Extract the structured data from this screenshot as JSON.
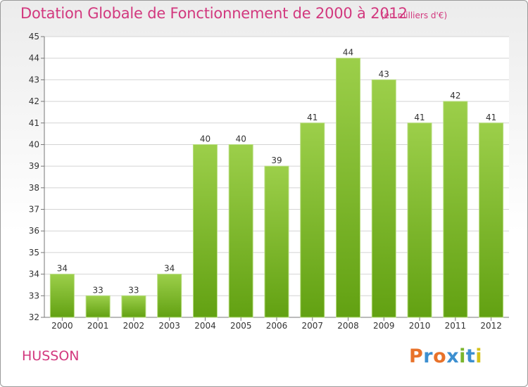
{
  "header": {
    "title": "Dotation Globale de Fonctionnement de 2000 à 2012",
    "subtitle": "(en milliers d'€)"
  },
  "footer": {
    "place": "HUSSON",
    "logo_text": "Proxiti",
    "logo_colors": [
      "#e8722a",
      "#3c8fd0",
      "#e8722a",
      "#3c8fd0",
      "#7ab52e",
      "#3c8fd0",
      "#d4c21a"
    ]
  },
  "colors": {
    "accent": "#d2387e",
    "bar_top": "#9ccf4a",
    "bar_bottom": "#62a112",
    "grid": "#d4d4d4",
    "axis": "#777777"
  },
  "chart_data": {
    "type": "bar",
    "title": "Dotation Globale de Fonctionnement de 2000 à 2012",
    "subtitle": "(en milliers d'€)",
    "xlabel": "",
    "ylabel": "",
    "categories": [
      "2000",
      "2001",
      "2002",
      "2003",
      "2004",
      "2005",
      "2006",
      "2007",
      "2008",
      "2009",
      "2010",
      "2011",
      "2012"
    ],
    "values": [
      34,
      33,
      33,
      34,
      40,
      40,
      39,
      41,
      44,
      43,
      41,
      42,
      41
    ],
    "ylim": [
      32,
      45
    ],
    "yticks": [
      32,
      33,
      34,
      35,
      36,
      37,
      38,
      39,
      40,
      41,
      42,
      43,
      44,
      45
    ],
    "grid": true,
    "legend": "none"
  }
}
